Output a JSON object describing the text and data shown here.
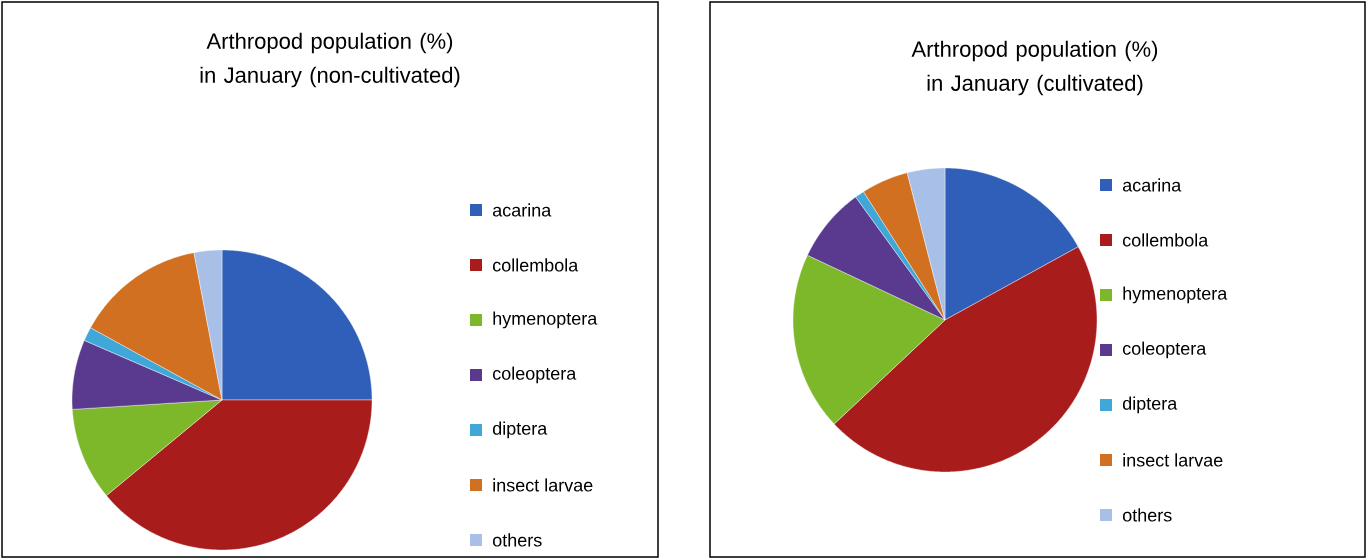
{
  "chart_data": [
    {
      "type": "pie",
      "title": "Arthropod population (%) in January (non-cultivated)",
      "categories": [
        "acarina",
        "collembola",
        "hymenoptera",
        "coleoptera",
        "diptera",
        "insect larvae",
        "others"
      ],
      "values": [
        25,
        39,
        10,
        7.5,
        1.5,
        14,
        3
      ],
      "colors": [
        "#2f5fb8",
        "#a81c1c",
        "#7cb82a",
        "#5a3a8e",
        "#3fa8d8",
        "#d07020",
        "#a8c0e8"
      ],
      "legend": "right"
    },
    {
      "type": "pie",
      "title": "Arthropod population (%) in January (cultivated)",
      "categories": [
        "acarina",
        "collembola",
        "hymenoptera",
        "coleoptera",
        "diptera",
        "insect larvae",
        "others"
      ],
      "values": [
        17,
        46,
        19,
        8,
        1,
        5,
        4
      ],
      "colors": [
        "#2f5fb8",
        "#a81c1c",
        "#7cb82a",
        "#5a3a8e",
        "#3fa8d8",
        "#d07020",
        "#a8c0e8"
      ],
      "legend": "right"
    }
  ]
}
